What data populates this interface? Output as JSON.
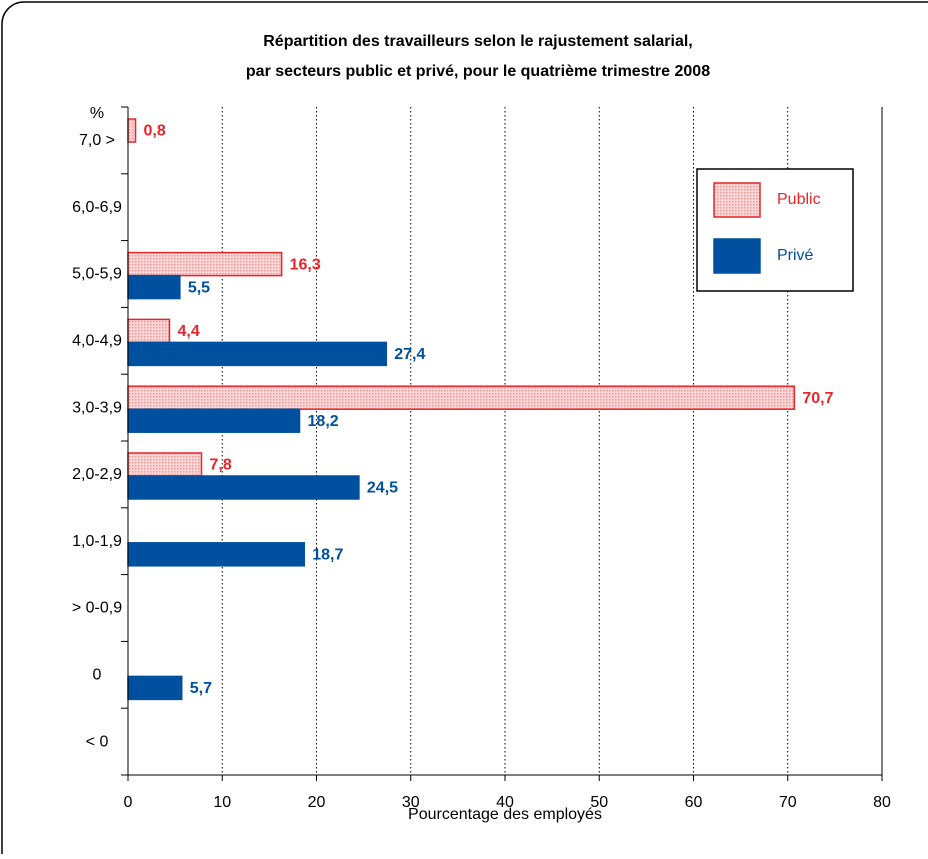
{
  "chart_data": {
    "type": "hbar",
    "title": [
      "Répartition des travailleurs selon le rajustement salarial,",
      "par secteurs public et privé, pour le quatrième trimestre 2008"
    ],
    "y_unit": "%",
    "categories": [
      "7,0 >",
      "6,0-6,9",
      "5,0-5,9",
      "4,0-4,9",
      "3,0-3,9",
      "2,0-2,9",
      "1,0-1,9",
      "> 0-0,9",
      "0",
      "< 0"
    ],
    "series": [
      {
        "name": "Public",
        "color": "#e8262a",
        "values": [
          0.8,
          null,
          16.3,
          4.4,
          70.7,
          7.8,
          null,
          null,
          null,
          null
        ],
        "value_labels": [
          "0,8",
          null,
          "16,3",
          "4,4",
          "70,7",
          "7,8",
          null,
          null,
          null,
          null
        ]
      },
      {
        "name": "Privé",
        "color": "#0050a0",
        "values": [
          null,
          null,
          5.5,
          27.4,
          18.2,
          24.5,
          18.7,
          null,
          5.7,
          null
        ],
        "value_labels": [
          null,
          null,
          "5,5",
          "27,4",
          "18,2",
          "24,5",
          "18,7",
          null,
          "5,7",
          null
        ]
      }
    ],
    "xlabel": "Pourcentage des employés",
    "xlim": [
      0,
      80
    ],
    "xticks": [
      0,
      10,
      20,
      30,
      40,
      50,
      60,
      70,
      80
    ],
    "grid": true,
    "legend": "upper right"
  }
}
